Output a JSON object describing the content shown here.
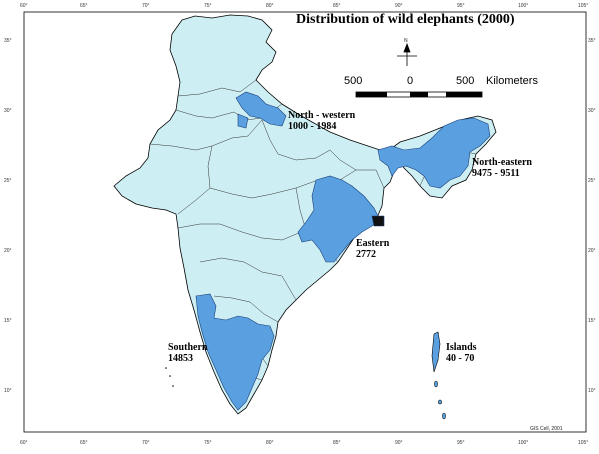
{
  "title": "Distribution of wild elephants  (2000)",
  "scale_bar": {
    "left": "500",
    "mid": "0",
    "right": "500",
    "unit": "Kilometers"
  },
  "north_arrow": "N",
  "regions": [
    {
      "name": "North - western",
      "count": "1000 - 1984"
    },
    {
      "name": "North-eastern",
      "count": "9475 - 9511"
    },
    {
      "name": "Eastern",
      "count": "2772"
    },
    {
      "name": "Southern",
      "count": "14853"
    },
    {
      "name": "Islands",
      "count": "40 - 70"
    }
  ],
  "longitude_ticks": [
    "60°",
    "65°",
    "70°",
    "75°",
    "80°",
    "85°",
    "90°",
    "95°",
    "100°",
    "105°"
  ],
  "latitude_ticks": [
    "35°",
    "30°",
    "25°",
    "20°",
    "15°",
    "10°"
  ],
  "credit": "GIS Cell, 2001",
  "colors": {
    "land": "#cdeef3",
    "elephant_range": "#5aa0e0",
    "border": "#000000"
  }
}
